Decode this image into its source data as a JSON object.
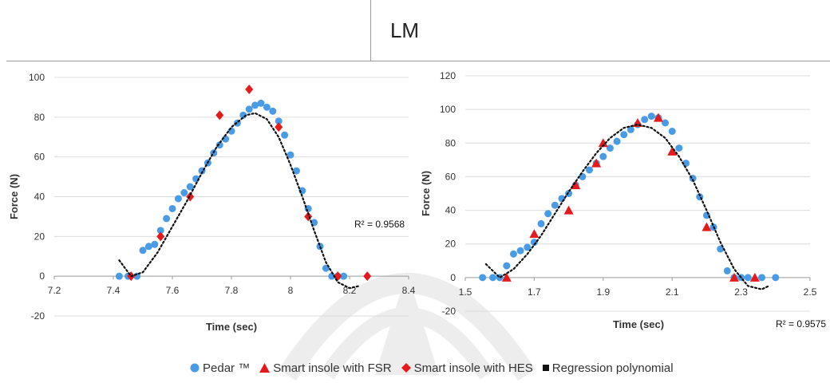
{
  "title": "LM",
  "legend": {
    "pedar": "Pedar ™",
    "fsr": "Smart insole with FSR",
    "hes": "Smart insole with HES",
    "poly": "Regression polynomial"
  },
  "colors": {
    "pedar": "#4a9be6",
    "fsr": "#e41a1c",
    "hes": "#e41a1c",
    "poly": "#111111"
  },
  "chart_data": [
    {
      "type": "scatter",
      "xlabel": "Time (sec)",
      "ylabel": "Force (N)",
      "xlim": [
        7.2,
        8.4
      ],
      "ylim": [
        -20,
        100
      ],
      "xticks": [
        "7.2",
        "7.4",
        "7.6",
        "7.8",
        "8",
        "8.2",
        "8.4"
      ],
      "yticks": [
        "-20",
        "0",
        "20",
        "40",
        "60",
        "80",
        "100"
      ],
      "r2": "R² = 0.9568",
      "grid": true,
      "series": [
        {
          "name": "Pedar ™",
          "marker": "circle",
          "x": [
            7.42,
            7.45,
            7.48,
            7.5,
            7.52,
            7.54,
            7.56,
            7.58,
            7.6,
            7.62,
            7.64,
            7.66,
            7.68,
            7.7,
            7.72,
            7.74,
            7.76,
            7.78,
            7.8,
            7.82,
            7.84,
            7.86,
            7.88,
            7.9,
            7.92,
            7.94,
            7.96,
            7.98,
            8.0,
            8.02,
            8.04,
            8.06,
            8.08,
            8.1,
            8.12,
            8.14,
            8.16,
            8.18
          ],
          "y": [
            0,
            0,
            0,
            13,
            15,
            16,
            23,
            29,
            34,
            39,
            42,
            45,
            49,
            53,
            57,
            62,
            66,
            69,
            73,
            77,
            81,
            84,
            86,
            87,
            85,
            83,
            78,
            71,
            61,
            53,
            43,
            34,
            27,
            15,
            4,
            0,
            0,
            0
          ]
        },
        {
          "name": "Smart insole with HES",
          "marker": "diamond",
          "x": [
            7.46,
            7.56,
            7.66,
            7.76,
            7.86,
            7.96,
            8.06,
            8.16,
            8.26
          ],
          "y": [
            0,
            20,
            40,
            81,
            94,
            75,
            30,
            0,
            0
          ]
        },
        {
          "name": "Regression polynomial",
          "marker": "dotted-line",
          "x": [
            7.42,
            7.46,
            7.5,
            7.55,
            7.6,
            7.65,
            7.7,
            7.75,
            7.8,
            7.85,
            7.88,
            7.92,
            7.96,
            8.0,
            8.04,
            8.08,
            8.12,
            8.16,
            8.2,
            8.23
          ],
          "y": [
            8,
            0,
            2,
            12,
            25,
            38,
            52,
            65,
            75,
            81,
            82,
            79,
            70,
            56,
            40,
            23,
            7,
            -3,
            -6,
            -5
          ]
        }
      ]
    },
    {
      "type": "scatter",
      "xlabel": "Time (sec)",
      "ylabel": "Force (N)",
      "xlim": [
        1.5,
        2.5
      ],
      "ylim": [
        -20,
        120
      ],
      "xticks": [
        "1.5",
        "1.7",
        "1.9",
        "2.1",
        "2.3",
        "2.5"
      ],
      "yticks": [
        "-20",
        "0",
        "20",
        "40",
        "60",
        "80",
        "100",
        "120"
      ],
      "r2": "R² = 0.9575",
      "grid": true,
      "series": [
        {
          "name": "Pedar ™",
          "marker": "circle",
          "x": [
            1.55,
            1.58,
            1.6,
            1.62,
            1.64,
            1.66,
            1.68,
            1.7,
            1.72,
            1.74,
            1.76,
            1.78,
            1.8,
            1.82,
            1.84,
            1.86,
            1.88,
            1.9,
            1.92,
            1.94,
            1.96,
            1.98,
            2.0,
            2.02,
            2.04,
            2.06,
            2.08,
            2.1,
            2.12,
            2.14,
            2.16,
            2.18,
            2.2,
            2.22,
            2.24,
            2.26,
            2.28,
            2.3,
            2.32,
            2.36,
            2.4
          ],
          "y": [
            0,
            0,
            0,
            7,
            14,
            16,
            18,
            21,
            32,
            38,
            43,
            47,
            50,
            55,
            60,
            64,
            68,
            72,
            77,
            81,
            85,
            88,
            91,
            94,
            96,
            95,
            92,
            87,
            77,
            68,
            59,
            48,
            37,
            30,
            17,
            4,
            0,
            0,
            0,
            0,
            0
          ]
        },
        {
          "name": "Smart insole with FSR",
          "marker": "triangle",
          "x": [
            1.62,
            1.7,
            1.8,
            1.82,
            1.88,
            1.9,
            2.0,
            2.06,
            2.1,
            2.2,
            2.28,
            2.34
          ],
          "y": [
            0,
            26,
            40,
            55,
            68,
            80,
            92,
            95,
            75,
            30,
            0,
            0
          ]
        },
        {
          "name": "Regression polynomial",
          "marker": "dotted-line",
          "x": [
            1.56,
            1.6,
            1.64,
            1.68,
            1.72,
            1.76,
            1.8,
            1.84,
            1.88,
            1.92,
            1.96,
            2.0,
            2.04,
            2.08,
            2.12,
            2.16,
            2.2,
            2.24,
            2.28,
            2.32,
            2.36,
            2.38
          ],
          "y": [
            8,
            0,
            5,
            14,
            25,
            38,
            51,
            63,
            74,
            83,
            89,
            91,
            89,
            83,
            72,
            58,
            40,
            21,
            5,
            -5,
            -7,
            -5
          ]
        }
      ]
    }
  ]
}
